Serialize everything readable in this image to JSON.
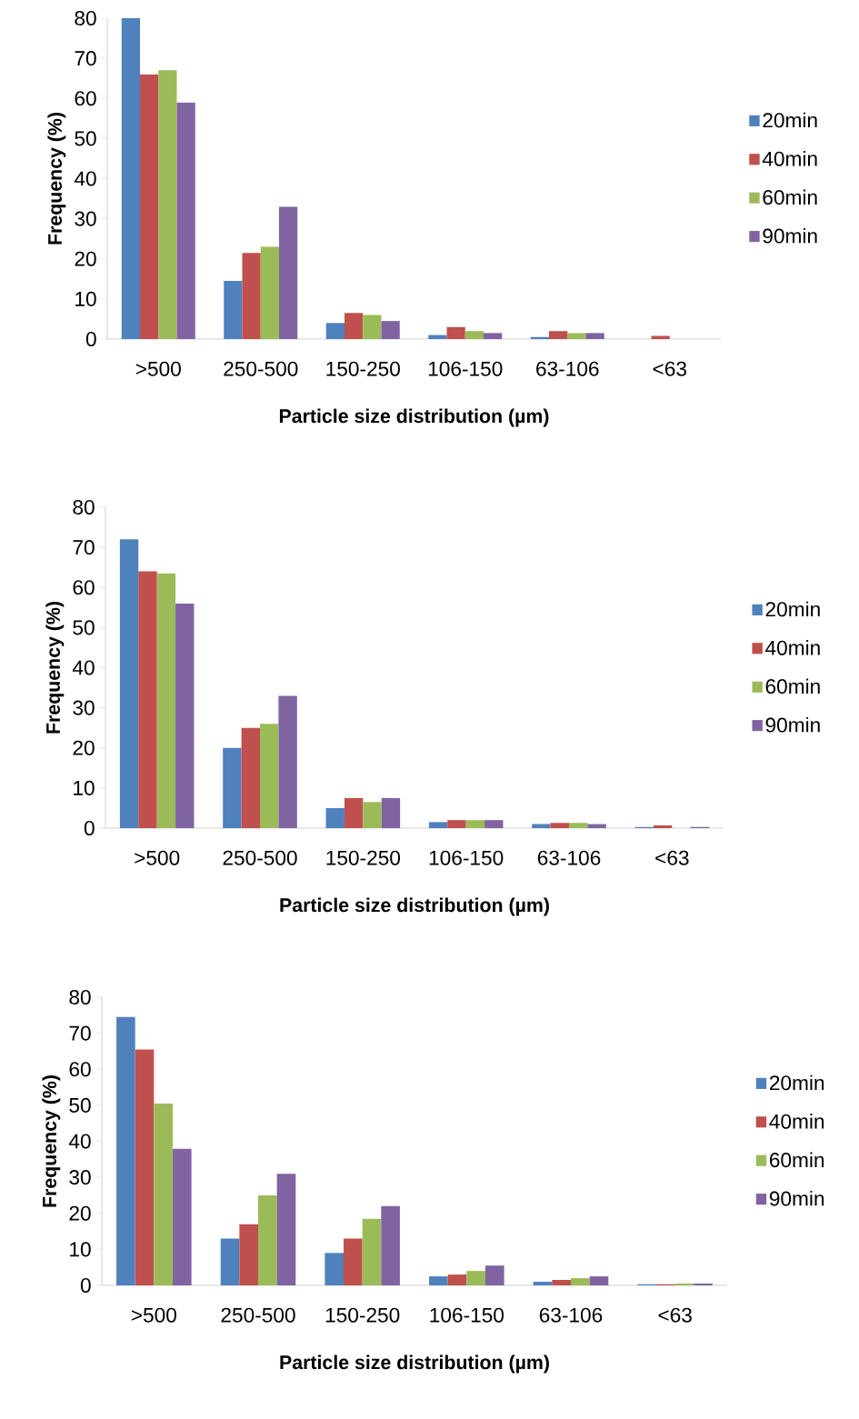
{
  "chart_data": [
    {
      "type": "bar",
      "xlabel": "Particle size distribution (µm)",
      "ylabel": "Frequency (%)",
      "categories": [
        ">500",
        "250-500",
        "150-250",
        "106-150",
        "63-106",
        "<63"
      ],
      "ylim": [
        0,
        80
      ],
      "yticks": [
        0,
        10,
        20,
        30,
        40,
        50,
        60,
        70,
        80
      ],
      "legend": "right",
      "grid": false,
      "series": [
        {
          "name": "20min",
          "color": "#4f81bd",
          "values": [
            80,
            14.5,
            4,
            1,
            0.5,
            0
          ]
        },
        {
          "name": "40min",
          "color": "#c0504d",
          "values": [
            66,
            21.5,
            6.5,
            3,
            2,
            0.8
          ]
        },
        {
          "name": "60min",
          "color": "#9bbb59",
          "values": [
            67,
            23,
            6,
            2,
            1.5,
            0
          ]
        },
        {
          "name": "90min",
          "color": "#8064a2",
          "values": [
            59,
            33,
            4.5,
            1.5,
            1.5,
            0
          ]
        }
      ]
    },
    {
      "type": "bar",
      "xlabel": "Particle size distribution (µm)",
      "ylabel": "Frequency (%)",
      "categories": [
        ">500",
        "250-500",
        "150-250",
        "106-150",
        "63-106",
        "<63"
      ],
      "ylim": [
        0,
        80
      ],
      "yticks": [
        0,
        10,
        20,
        30,
        40,
        50,
        60,
        70,
        80
      ],
      "legend": "right",
      "grid": false,
      "series": [
        {
          "name": "20min",
          "color": "#4f81bd",
          "values": [
            72,
            20,
            5,
            1.5,
            1,
            0.3
          ]
        },
        {
          "name": "40min",
          "color": "#c0504d",
          "values": [
            64,
            25,
            7.5,
            2,
            1.3,
            0.7
          ]
        },
        {
          "name": "60min",
          "color": "#9bbb59",
          "values": [
            63.5,
            26,
            6.5,
            2,
            1.3,
            0
          ]
        },
        {
          "name": "90min",
          "color": "#8064a2",
          "values": [
            56,
            33,
            7.5,
            2,
            1,
            0.3
          ]
        }
      ]
    },
    {
      "type": "bar",
      "xlabel": "Particle size distribution (µm)",
      "ylabel": "Frequency (%)",
      "categories": [
        ">500",
        "250-500",
        "150-250",
        "106-150",
        "63-106",
        "<63"
      ],
      "ylim": [
        0,
        80
      ],
      "yticks": [
        0,
        10,
        20,
        30,
        40,
        50,
        60,
        70,
        80
      ],
      "legend": "right",
      "grid": false,
      "series": [
        {
          "name": "20min",
          "color": "#4f81bd",
          "values": [
            74.5,
            13,
            9,
            2.5,
            1,
            0.3
          ]
        },
        {
          "name": "40min",
          "color": "#c0504d",
          "values": [
            65.5,
            17,
            13,
            3,
            1.5,
            0.3
          ]
        },
        {
          "name": "60min",
          "color": "#9bbb59",
          "values": [
            50.5,
            25,
            18.5,
            4,
            2,
            0.5
          ]
        },
        {
          "name": "90min",
          "color": "#8064a2",
          "values": [
            38,
            31,
            22,
            5.5,
            2.5,
            0.5
          ]
        }
      ]
    }
  ]
}
